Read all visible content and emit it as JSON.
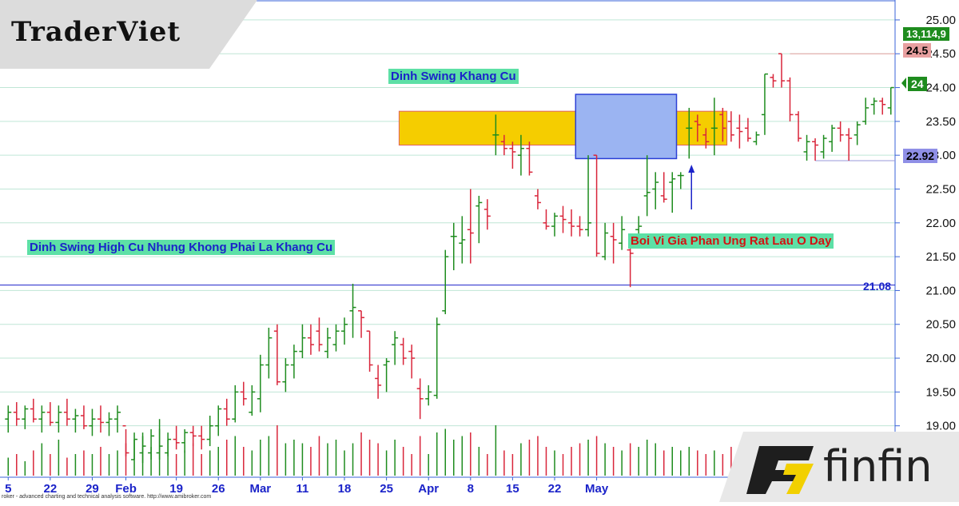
{
  "branding": {
    "traderviet": "TraderViet",
    "finfin": "finfin",
    "finfin_icon": "ff-monogram-icon"
  },
  "footer": "roker - advanced charting and technical analysis software. http://www.amibroker.com",
  "annotations": {
    "dinh_swing_khang_cu": "Dinh Swing Khang Cu",
    "dinh_swing_high_cu": "Dinh Swing High Cu Nhung Khong Phai La Khang Cu",
    "boi_vi_gia": "Boi Vi Gia Phan Ung Rat Lau O Day"
  },
  "price_tags": {
    "volume": "13,114,9",
    "resistance": "24.5",
    "last": "24",
    "support": "22.92",
    "hline": "21.08"
  },
  "colors": {
    "up": "#1e8c1e",
    "down": "#d9253a",
    "resistance_zone": "#f5cd00",
    "consolidation_box": "#9bb4f2",
    "axis_line": "#3a63d8",
    "grid": "#bfe6d6",
    "volume_tag": "#1e8c1e",
    "resistance_tag": "#e8a0a0",
    "last_tag": "#1e8c1e",
    "support_tag": "#8f8fe6"
  },
  "chart_data": {
    "type": "candlestick",
    "ylim": [
      18.5,
      25.2
    ],
    "y_ticks": [
      19.0,
      19.5,
      20.0,
      20.5,
      21.0,
      21.5,
      22.0,
      22.5,
      23.0,
      23.5,
      24.0,
      24.5,
      25.0
    ],
    "y_tick_labels": [
      "19.00",
      "19.50",
      "20.00",
      "20.50",
      "21.00",
      "21.50",
      "22.00",
      "22.50",
      "23.00",
      "23.50",
      "24.00",
      "24.50",
      "25.00"
    ],
    "x_ticks": [
      {
        "label": "5",
        "bar": 0
      },
      {
        "label": "22",
        "bar": 5
      },
      {
        "label": "29",
        "bar": 10
      },
      {
        "label": "Feb",
        "bar": 14
      },
      {
        "label": "19",
        "bar": 20
      },
      {
        "label": "26",
        "bar": 25
      },
      {
        "label": "Mar",
        "bar": 30
      },
      {
        "label": "11",
        "bar": 35
      },
      {
        "label": "18",
        "bar": 40
      },
      {
        "label": "25",
        "bar": 45
      },
      {
        "label": "Apr",
        "bar": 50
      },
      {
        "label": "8",
        "bar": 55
      },
      {
        "label": "15",
        "bar": 60
      },
      {
        "label": "22",
        "bar": 65
      },
      {
        "label": "May",
        "bar": 70
      }
    ],
    "resistance_zone": {
      "y_low": 23.15,
      "y_high": 23.65,
      "bar_start": 47,
      "bar_end": 85
    },
    "consolidation_box": {
      "y_low": 22.95,
      "y_high": 23.9,
      "bar_start": 68,
      "bar_end": 79
    },
    "horizontal_line": 21.08,
    "support_level": 22.92,
    "resistance_level": 24.5,
    "bars": [
      {
        "o": 19.1,
        "h": 19.3,
        "l": 18.9,
        "c": 19.2,
        "v": 0.25
      },
      {
        "o": 19.2,
        "h": 19.35,
        "l": 19.0,
        "c": 19.1,
        "v": 0.3
      },
      {
        "o": 19.1,
        "h": 19.3,
        "l": 18.95,
        "c": 19.25,
        "v": 0.2
      },
      {
        "o": 19.25,
        "h": 19.4,
        "l": 19.05,
        "c": 19.1,
        "v": 0.35
      },
      {
        "o": 19.1,
        "h": 19.3,
        "l": 18.9,
        "c": 19.2,
        "v": 0.45
      },
      {
        "o": 19.2,
        "h": 19.35,
        "l": 19.0,
        "c": 19.05,
        "v": 0.3
      },
      {
        "o": 19.05,
        "h": 19.3,
        "l": 18.9,
        "c": 19.2,
        "v": 0.5
      },
      {
        "o": 19.2,
        "h": 19.4,
        "l": 19.0,
        "c": 19.1,
        "v": 0.25
      },
      {
        "o": 19.1,
        "h": 19.25,
        "l": 18.9,
        "c": 19.15,
        "v": 0.3
      },
      {
        "o": 19.15,
        "h": 19.3,
        "l": 18.95,
        "c": 19.0,
        "v": 0.35
      },
      {
        "o": 19.0,
        "h": 19.25,
        "l": 18.85,
        "c": 19.1,
        "v": 0.3
      },
      {
        "o": 19.1,
        "h": 19.3,
        "l": 18.9,
        "c": 19.05,
        "v": 0.4
      },
      {
        "o": 19.05,
        "h": 19.2,
        "l": 18.85,
        "c": 19.1,
        "v": 0.3
      },
      {
        "o": 19.1,
        "h": 19.3,
        "l": 18.9,
        "c": 19.2,
        "v": 0.35
      },
      {
        "o": 19.0,
        "h": 18.95,
        "l": 18.55,
        "c": 18.6,
        "v": 0.45
      },
      {
        "o": 18.5,
        "h": 18.9,
        "l": 18.5,
        "c": 18.8,
        "v": 0.5
      },
      {
        "o": 18.6,
        "h": 18.9,
        "l": 18.45,
        "c": 18.7,
        "v": 0.55
      },
      {
        "o": 18.6,
        "h": 18.95,
        "l": 18.5,
        "c": 18.85,
        "v": 0.4
      },
      {
        "o": 18.6,
        "h": 19.1,
        "l": 18.5,
        "c": 18.7,
        "v": 0.65
      },
      {
        "o": 18.6,
        "h": 18.9,
        "l": 18.55,
        "c": 18.8,
        "v": 0.5
      },
      {
        "o": 18.8,
        "h": 19.0,
        "l": 18.65,
        "c": 18.75,
        "v": 0.3
      },
      {
        "o": 18.75,
        "h": 18.95,
        "l": 18.6,
        "c": 18.9,
        "v": 0.35
      },
      {
        "o": 18.9,
        "h": 19.0,
        "l": 18.7,
        "c": 18.85,
        "v": 0.45
      },
      {
        "o": 18.85,
        "h": 19.0,
        "l": 18.65,
        "c": 18.8,
        "v": 0.3
      },
      {
        "o": 18.8,
        "h": 19.15,
        "l": 18.7,
        "c": 19.0,
        "v": 0.35
      },
      {
        "o": 19.0,
        "h": 19.3,
        "l": 18.85,
        "c": 19.25,
        "v": 0.4
      },
      {
        "o": 19.25,
        "h": 19.4,
        "l": 19.0,
        "c": 19.1,
        "v": 0.5
      },
      {
        "o": 19.1,
        "h": 19.6,
        "l": 19.05,
        "c": 19.5,
        "v": 0.55
      },
      {
        "o": 19.5,
        "h": 19.65,
        "l": 19.3,
        "c": 19.4,
        "v": 0.4
      },
      {
        "o": 19.2,
        "h": 19.6,
        "l": 19.15,
        "c": 19.5,
        "v": 0.35
      },
      {
        "o": 19.4,
        "h": 20.05,
        "l": 19.2,
        "c": 19.9,
        "v": 0.5
      },
      {
        "o": 19.9,
        "h": 20.45,
        "l": 19.7,
        "c": 20.3,
        "v": 0.55
      },
      {
        "o": 20.4,
        "h": 20.5,
        "l": 19.6,
        "c": 19.65,
        "v": 0.7
      },
      {
        "o": 19.65,
        "h": 20.0,
        "l": 19.5,
        "c": 19.9,
        "v": 0.45
      },
      {
        "o": 19.9,
        "h": 20.2,
        "l": 19.7,
        "c": 20.1,
        "v": 0.5
      },
      {
        "o": 20.1,
        "h": 20.5,
        "l": 20.0,
        "c": 20.3,
        "v": 0.45
      },
      {
        "o": 20.3,
        "h": 20.5,
        "l": 20.05,
        "c": 20.2,
        "v": 0.4
      },
      {
        "o": 20.4,
        "h": 20.6,
        "l": 20.1,
        "c": 20.2,
        "v": 0.55
      },
      {
        "o": 20.1,
        "h": 20.45,
        "l": 20.0,
        "c": 20.3,
        "v": 0.45
      },
      {
        "o": 20.2,
        "h": 20.5,
        "l": 20.1,
        "c": 20.4,
        "v": 0.5
      },
      {
        "o": 20.4,
        "h": 20.6,
        "l": 20.2,
        "c": 20.5,
        "v": 0.35
      },
      {
        "o": 20.7,
        "h": 21.1,
        "l": 20.3,
        "c": 20.75,
        "v": 0.45
      },
      {
        "o": 20.7,
        "h": 20.7,
        "l": 20.3,
        "c": 20.6,
        "v": 0.6
      },
      {
        "o": 20.4,
        "h": 20.4,
        "l": 19.8,
        "c": 19.9,
        "v": 0.5
      },
      {
        "o": 19.7,
        "h": 19.9,
        "l": 19.4,
        "c": 19.6,
        "v": 0.45
      },
      {
        "o": 19.9,
        "h": 20.0,
        "l": 19.5,
        "c": 19.95,
        "v": 0.35
      },
      {
        "o": 20.2,
        "h": 20.4,
        "l": 19.9,
        "c": 20.3,
        "v": 0.5
      },
      {
        "o": 20.2,
        "h": 20.3,
        "l": 19.9,
        "c": 20.0,
        "v": 0.4
      },
      {
        "o": 20.1,
        "h": 20.2,
        "l": 19.7,
        "c": 20.0,
        "v": 0.3
      },
      {
        "o": 19.55,
        "h": 19.7,
        "l": 19.1,
        "c": 19.4,
        "v": 0.55
      },
      {
        "o": 19.4,
        "h": 19.6,
        "l": 19.3,
        "c": 19.5,
        "v": 0.3
      },
      {
        "o": 19.45,
        "h": 20.6,
        "l": 19.4,
        "c": 20.5,
        "v": 0.6
      },
      {
        "o": 20.7,
        "h": 21.6,
        "l": 20.65,
        "c": 21.5,
        "v": 0.65
      },
      {
        "o": 21.8,
        "h": 22.0,
        "l": 21.3,
        "c": 21.8,
        "v": 0.5
      },
      {
        "o": 21.7,
        "h": 22.1,
        "l": 21.4,
        "c": 21.75,
        "v": 0.55
      },
      {
        "o": 21.9,
        "h": 22.5,
        "l": 21.4,
        "c": 21.85,
        "v": 0.6
      },
      {
        "o": 22.25,
        "h": 22.4,
        "l": 21.7,
        "c": 22.3,
        "v": 0.4
      },
      {
        "o": 22.2,
        "h": 22.35,
        "l": 21.9,
        "c": 22.1,
        "v": 0.3
      },
      {
        "o": 23.3,
        "h": 23.6,
        "l": 23.0,
        "c": 23.3,
        "v": 0.7
      },
      {
        "o": 23.2,
        "h": 23.3,
        "l": 23.0,
        "c": 23.1,
        "v": 0.35
      },
      {
        "o": 23.1,
        "h": 23.2,
        "l": 22.8,
        "c": 23.05,
        "v": 0.3
      },
      {
        "o": 23.0,
        "h": 23.3,
        "l": 22.7,
        "c": 23.1,
        "v": 0.45
      },
      {
        "o": 23.1,
        "h": 23.2,
        "l": 22.7,
        "c": 22.75,
        "v": 0.5
      },
      {
        "o": 22.4,
        "h": 22.5,
        "l": 22.2,
        "c": 22.3,
        "v": 0.55
      },
      {
        "o": 22.0,
        "h": 22.2,
        "l": 21.9,
        "c": 21.95,
        "v": 0.4
      },
      {
        "o": 21.95,
        "h": 22.15,
        "l": 21.8,
        "c": 22.1,
        "v": 0.35
      },
      {
        "o": 22.1,
        "h": 22.25,
        "l": 21.85,
        "c": 22.05,
        "v": 0.3
      },
      {
        "o": 22.0,
        "h": 22.2,
        "l": 21.8,
        "c": 21.95,
        "v": 0.4
      },
      {
        "o": 21.95,
        "h": 22.1,
        "l": 21.8,
        "c": 21.9,
        "v": 0.45
      },
      {
        "o": 21.9,
        "h": 23.0,
        "l": 21.8,
        "c": 22.0,
        "v": 0.5
      },
      {
        "o": 23.0,
        "h": 23.0,
        "l": 21.5,
        "c": 21.55,
        "v": 0.55
      },
      {
        "o": 21.5,
        "h": 22.0,
        "l": 21.45,
        "c": 21.85,
        "v": 0.45
      },
      {
        "o": 21.8,
        "h": 22.0,
        "l": 21.4,
        "c": 21.75,
        "v": 0.4
      },
      {
        "o": 21.7,
        "h": 22.1,
        "l": 21.6,
        "c": 21.9,
        "v": 0.35
      },
      {
        "o": 21.6,
        "h": 21.7,
        "l": 21.05,
        "c": 21.55,
        "v": 0.45
      },
      {
        "o": 21.9,
        "h": 22.1,
        "l": 21.8,
        "c": 21.95,
        "v": 0.4
      },
      {
        "o": 22.4,
        "h": 23.0,
        "l": 22.1,
        "c": 22.45,
        "v": 0.5
      },
      {
        "o": 22.5,
        "h": 22.75,
        "l": 22.2,
        "c": 22.6,
        "v": 0.45
      },
      {
        "o": 22.4,
        "h": 22.75,
        "l": 22.3,
        "c": 22.35,
        "v": 0.35
      },
      {
        "o": 22.6,
        "h": 22.75,
        "l": 22.15,
        "c": 22.65,
        "v": 0.4
      },
      {
        "o": 22.7,
        "h": 22.75,
        "l": 22.5,
        "c": 22.7,
        "v": 0.35
      },
      {
        "o": 23.4,
        "h": 23.7,
        "l": 22.95,
        "c": 23.4,
        "v": 0.4
      },
      {
        "o": 23.5,
        "h": 23.6,
        "l": 23.2,
        "c": 23.45,
        "v": 0.35
      },
      {
        "o": 23.3,
        "h": 23.4,
        "l": 23.1,
        "c": 23.2,
        "v": 0.3
      },
      {
        "o": 23.4,
        "h": 23.85,
        "l": 23.0,
        "c": 23.4,
        "v": 0.35
      },
      {
        "o": 23.6,
        "h": 23.7,
        "l": 23.2,
        "c": 23.4,
        "v": 0.3
      },
      {
        "o": 23.5,
        "h": 23.65,
        "l": 23.2,
        "c": 23.3,
        "v": 0.4
      },
      {
        "o": 23.4,
        "h": 23.6,
        "l": 23.1,
        "c": 23.35,
        "v": 0.35
      },
      {
        "o": 23.4,
        "h": 23.55,
        "l": 23.2,
        "c": 23.25,
        "v": 0.3
      },
      {
        "o": 23.2,
        "h": 23.35,
        "l": 23.15,
        "c": 23.3,
        "v": 0.25
      },
      {
        "o": 23.6,
        "h": 24.2,
        "l": 23.3,
        "c": 24.2,
        "v": 0.5
      },
      {
        "o": 24.15,
        "h": 24.2,
        "l": 24.0,
        "c": 24.1,
        "v": 0.35
      },
      {
        "o": 24.5,
        "h": 24.5,
        "l": 24.0,
        "c": 24.1,
        "v": 0.45
      },
      {
        "o": 24.1,
        "h": 24.15,
        "l": 23.5,
        "c": 23.6,
        "v": 0.5
      },
      {
        "o": 23.6,
        "h": 23.65,
        "l": 23.2,
        "c": 23.25,
        "v": 0.45
      },
      {
        "o": 23.05,
        "h": 23.3,
        "l": 22.92,
        "c": 23.2,
        "v": 0.4
      },
      {
        "o": 23.2,
        "h": 23.25,
        "l": 22.92,
        "c": 23.15,
        "v": 0.35
      },
      {
        "o": 23.05,
        "h": 23.3,
        "l": 22.95,
        "c": 23.25,
        "v": 0.3
      },
      {
        "o": 23.2,
        "h": 23.45,
        "l": 23.05,
        "c": 23.4,
        "v": 0.35
      },
      {
        "o": 23.4,
        "h": 23.5,
        "l": 23.2,
        "c": 23.3,
        "v": 0.3
      },
      {
        "o": 23.3,
        "h": 23.4,
        "l": 22.92,
        "c": 23.25,
        "v": 0.3
      },
      {
        "o": 23.3,
        "h": 23.5,
        "l": 23.15,
        "c": 23.45,
        "v": 0.35
      },
      {
        "o": 23.5,
        "h": 23.85,
        "l": 23.45,
        "c": 23.7,
        "v": 0.3
      },
      {
        "o": 23.75,
        "h": 23.85,
        "l": 23.6,
        "c": 23.8,
        "v": 0.3
      },
      {
        "o": 23.8,
        "h": 23.85,
        "l": 23.6,
        "c": 23.75,
        "v": 0.35
      },
      {
        "o": 23.7,
        "h": 24.0,
        "l": 23.6,
        "c": 24.0,
        "v": 0.4
      }
    ]
  }
}
